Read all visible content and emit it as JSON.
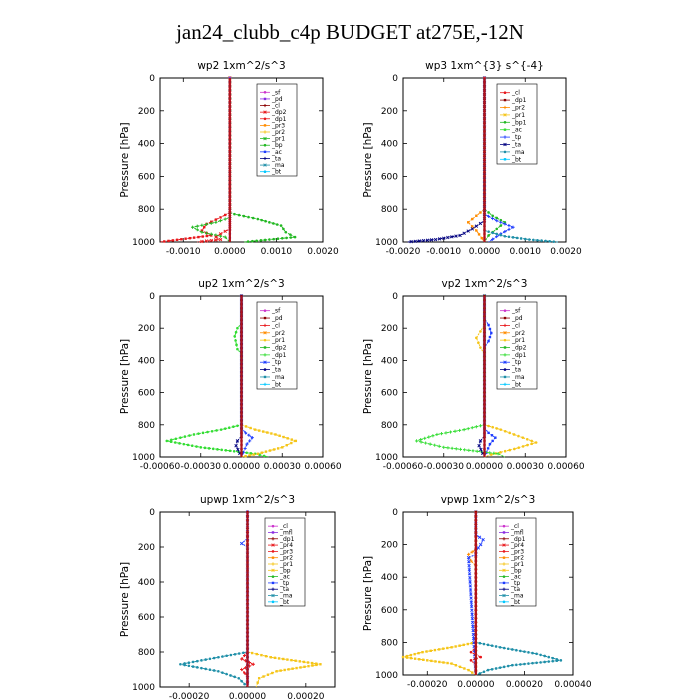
{
  "title": "jan24_clubb_c4p  BUDGET at275E,-12N",
  "colors": {
    "purple": "#8a2be2",
    "darkred": "#8b0000",
    "red": "#e8171b",
    "orange": "#ff8c00",
    "yellow": "#f5c518",
    "green": "#22b822",
    "lime": "#33dd33",
    "blue": "#1e3cff",
    "navy": "#000080",
    "teal": "#1f8fa8",
    "cyan": "#00c8ff",
    "magenta": "#cc33cc"
  },
  "chart_data": [
    {
      "type": "line",
      "title": "wp2   1xm^2/s^3",
      "ylabel": "Pressure [hPa]",
      "xlim": [
        -0.0015,
        0.002
      ],
      "ylim": [
        1000,
        0
      ],
      "xticks": [
        -0.001,
        0,
        0.001,
        0.002
      ],
      "xtick_labels": [
        "-0.0010",
        "0.0000",
        "0.0010",
        "0.0020"
      ],
      "yticks": [
        0,
        200,
        400,
        600,
        800,
        1000
      ],
      "ytick_labels": [
        "0",
        "200",
        "400",
        "600",
        "800",
        "1000"
      ],
      "legend": [
        "_sf",
        "_pd",
        "_cl",
        "_dp2",
        "_dp1",
        "_pr3",
        "_pr2",
        "_pr1",
        "_bp",
        "_ac",
        "_ta",
        "_ma",
        "_bt"
      ],
      "legend_colors": [
        "magenta",
        "purple",
        "darkred",
        "red",
        "red",
        "orange",
        "yellow",
        "green",
        "green",
        "blue",
        "navy",
        "teal",
        "cyan"
      ],
      "series": [
        {
          "name": "_bp",
          "color": "green",
          "x": [
            0,
            0,
            0.0001,
            0.0006,
            0.0011,
            0.0012,
            0.0014,
            0.0003
          ],
          "y": [
            0,
            820,
            830,
            860,
            900,
            940,
            970,
            1000
          ]
        },
        {
          "name": "_dp1",
          "color": "red",
          "x": [
            0,
            0,
            -0.0002,
            -0.0005,
            -0.0006,
            -0.0004,
            -0.0015
          ],
          "y": [
            0,
            820,
            850,
            890,
            930,
            960,
            1000
          ]
        },
        {
          "name": "_pr1",
          "color": "green",
          "x": [
            0,
            0,
            -0.0003,
            -0.0008,
            -0.0006,
            -0.0001,
            0
          ],
          "y": [
            0,
            850,
            880,
            910,
            940,
            970,
            1000
          ]
        },
        {
          "name": "_dp2",
          "color": "red",
          "x": [
            0,
            0,
            -0.0002,
            -0.0003,
            -0.0002,
            -0.0007
          ],
          "y": [
            0,
            920,
            950,
            970,
            985,
            1000
          ]
        },
        {
          "name": "_pd",
          "color": "purple",
          "x": [
            0,
            0,
            0,
            0
          ],
          "y": [
            0,
            500,
            900,
            1000
          ]
        }
      ]
    },
    {
      "type": "line",
      "title": "wp3   1xm^{3} s^{-4}",
      "ylabel": "Pressure [hPa]",
      "xlim": [
        -0.002,
        0.002
      ],
      "ylim": [
        1000,
        0
      ],
      "xticks": [
        -0.002,
        -0.001,
        0,
        0.001,
        0.002
      ],
      "xtick_labels": [
        "-0.0020",
        "-0.0010",
        "0.0000",
        "0.0010",
        "0.0020"
      ],
      "yticks": [
        0,
        200,
        400,
        600,
        800,
        1000
      ],
      "ytick_labels": [
        "0",
        "200",
        "400",
        "600",
        "800",
        "1000"
      ],
      "legend": [
        "_cl",
        "_dp1",
        "_pr2",
        "_pr1",
        "_bp1",
        "_ac",
        "_tp",
        "_ta",
        "_ma",
        "_bt"
      ],
      "legend_colors": [
        "red",
        "darkred",
        "orange",
        "yellow",
        "green",
        "lime",
        "blue",
        "navy",
        "teal",
        "cyan"
      ],
      "series": [
        {
          "name": "_bp1",
          "color": "green",
          "x": [
            0,
            0,
            0.0002,
            0.0005,
            0.0003,
            0.0001,
            0
          ],
          "y": [
            0,
            800,
            840,
            880,
            920,
            960,
            1000
          ]
        },
        {
          "name": "_pr2",
          "color": "orange",
          "x": [
            0,
            0,
            -0.0002,
            -0.0004,
            -0.0002,
            0
          ],
          "y": [
            0,
            800,
            840,
            880,
            930,
            1000
          ]
        },
        {
          "name": "_tp",
          "color": "blue",
          "x": [
            0,
            0,
            0.0003,
            0.0007,
            0.0004,
            0.0001
          ],
          "y": [
            0,
            830,
            870,
            910,
            950,
            1000
          ]
        },
        {
          "name": "_ta",
          "color": "navy",
          "x": [
            0,
            0,
            -0.0003,
            -0.0006,
            -0.0012,
            -0.0019
          ],
          "y": [
            0,
            870,
            920,
            960,
            985,
            1000
          ]
        },
        {
          "name": "_ma",
          "color": "teal",
          "x": [
            0,
            0,
            0.0005,
            0.0011,
            0.0018
          ],
          "y": [
            0,
            930,
            965,
            985,
            1000
          ]
        },
        {
          "name": "_cl",
          "color": "red",
          "x": [
            0,
            0,
            0,
            0
          ],
          "y": [
            0,
            500,
            900,
            1000
          ]
        }
      ]
    },
    {
      "type": "line",
      "title": "up2   1xm^2/s^3",
      "ylabel": "Pressure [hPa]",
      "xlim": [
        -0.0006,
        0.0006
      ],
      "ylim": [
        1000,
        0
      ],
      "xticks": [
        -0.0006,
        -0.0003,
        0,
        0.0003,
        0.0006
      ],
      "xtick_labels": [
        "-0.00060",
        "-0.00030",
        "0.00000",
        "0.00030",
        "0.00060"
      ],
      "yticks": [
        0,
        200,
        400,
        600,
        800,
        1000
      ],
      "ytick_labels": [
        "0",
        "200",
        "400",
        "600",
        "800",
        "1000"
      ],
      "legend": [
        "_sf",
        "_pd",
        "_cl",
        "_pr2",
        "_pr1",
        "_dp2",
        "_dp1",
        "_tp",
        "_ta",
        "_ma",
        "_bt"
      ],
      "legend_colors": [
        "magenta",
        "darkred",
        "red",
        "orange",
        "yellow",
        "green",
        "lime",
        "blue",
        "navy",
        "teal",
        "cyan"
      ],
      "series": [
        {
          "name": "_dp2",
          "color": "lime",
          "x": [
            0,
            0,
            -3e-05,
            -5e-05,
            -3e-05,
            0,
            0,
            -0.00015,
            -0.00035,
            -0.00055,
            -0.0003,
            0.0001,
            0.0002
          ],
          "y": [
            0,
            170,
            200,
            250,
            330,
            360,
            800,
            830,
            860,
            900,
            940,
            980,
            1000
          ]
        },
        {
          "name": "_pr1",
          "color": "yellow",
          "x": [
            0,
            0,
            0.0001,
            0.00025,
            0.0004,
            0.0003,
            0.00012,
            0
          ],
          "y": [
            0,
            800,
            830,
            860,
            900,
            940,
            980,
            1000
          ]
        },
        {
          "name": "_tp",
          "color": "blue",
          "x": [
            0,
            0,
            3e-05,
            8e-05,
            4e-05,
            0
          ],
          "y": [
            0,
            820,
            850,
            880,
            920,
            1000
          ]
        },
        {
          "name": "_ta",
          "color": "navy",
          "x": [
            0,
            0,
            -3e-05,
            -4e-05,
            0
          ],
          "y": [
            0,
            870,
            900,
            930,
            1000
          ]
        },
        {
          "name": "_pd",
          "color": "darkred",
          "x": [
            0,
            0,
            0,
            0
          ],
          "y": [
            0,
            500,
            900,
            1000
          ]
        }
      ]
    },
    {
      "type": "line",
      "title": "vp2   1xm^2/s^3",
      "ylabel": "Pressure [hPa]",
      "xlim": [
        -0.0006,
        0.0006
      ],
      "ylim": [
        1000,
        0
      ],
      "xticks": [
        -0.0006,
        -0.0003,
        0,
        0.0003,
        0.0006
      ],
      "xtick_labels": [
        "-0.00060",
        "-0.00030",
        "0.00000",
        "0.00030",
        "0.00060"
      ],
      "yticks": [
        0,
        200,
        400,
        600,
        800,
        1000
      ],
      "ytick_labels": [
        "0",
        "200",
        "400",
        "600",
        "800",
        "1000"
      ],
      "legend": [
        "_sf",
        "_pd",
        "_cl",
        "_pr2",
        "_pr1",
        "_dp2",
        "_dp1",
        "_tp",
        "_ta",
        "_ma",
        "_bt"
      ],
      "legend_colors": [
        "magenta",
        "darkred",
        "red",
        "orange",
        "yellow",
        "green",
        "lime",
        "blue",
        "navy",
        "teal",
        "cyan"
      ],
      "series": [
        {
          "name": "_pr1",
          "color": "yellow",
          "x": [
            0,
            0,
            -3e-05,
            -6e-05,
            -3e-05,
            0,
            0,
            0.00012,
            0.00025,
            0.00038,
            0.00022,
            5e-05,
            0
          ],
          "y": [
            0,
            180,
            220,
            260,
            320,
            360,
            800,
            830,
            870,
            910,
            950,
            985,
            1000
          ]
        },
        {
          "name": "_tp",
          "color": "blue",
          "x": [
            0,
            0,
            3e-05,
            5e-05,
            3e-05,
            0,
            0,
            3e-05,
            8e-05,
            4e-05,
            0
          ],
          "y": [
            0,
            140,
            180,
            230,
            280,
            320,
            820,
            850,
            880,
            920,
            1000
          ]
        },
        {
          "name": "_dp2",
          "color": "lime",
          "x": [
            0,
            0,
            -0.00015,
            -0.00035,
            -0.0005,
            -0.0003,
            0.0001,
            0.00015
          ],
          "y": [
            0,
            800,
            830,
            860,
            900,
            940,
            980,
            1000
          ]
        },
        {
          "name": "_ta",
          "color": "navy",
          "x": [
            0,
            0,
            -3e-05,
            -4e-05,
            0
          ],
          "y": [
            0,
            870,
            900,
            930,
            1000
          ]
        },
        {
          "name": "_pd",
          "color": "darkred",
          "x": [
            0,
            0,
            0,
            0
          ],
          "y": [
            0,
            500,
            900,
            1000
          ]
        }
      ]
    },
    {
      "type": "line",
      "title": "upwp   1xm^2/s^3",
      "ylabel": "Pressure [hPa]",
      "xlim": [
        -0.0003,
        0.0003
      ],
      "ylim": [
        1000,
        0
      ],
      "xticks": [
        -0.0002,
        0,
        0.0002
      ],
      "xtick_labels": [
        "-0.00020",
        "0.00000",
        "0.00020"
      ],
      "yticks": [
        0,
        200,
        400,
        600,
        800,
        1000
      ],
      "ytick_labels": [
        "0",
        "200",
        "400",
        "600",
        "800",
        "1000"
      ],
      "legend": [
        "_cl",
        "_mfl",
        "_dp1",
        "_pr4",
        "_pr3",
        "_pr2",
        "_pr1",
        "_bp",
        "_ac",
        "_tp",
        "_ta",
        "_ma",
        "_bt"
      ],
      "legend_colors": [
        "magenta",
        "purple",
        "darkred",
        "red",
        "red",
        "orange",
        "yellow",
        "yellow",
        "green",
        "blue",
        "navy",
        "teal",
        "cyan"
      ],
      "series": [
        {
          "name": "_ma",
          "color": "teal",
          "x": [
            0,
            0,
            -0.0001,
            -0.00023,
            -0.0001,
            -3e-05,
            0
          ],
          "y": [
            0,
            800,
            830,
            870,
            910,
            950,
            1000
          ]
        },
        {
          "name": "_pr1",
          "color": "yellow",
          "x": [
            0,
            0,
            8e-05,
            0.00025,
            0.0001,
            4e-05,
            3e-05
          ],
          "y": [
            0,
            800,
            830,
            870,
            910,
            950,
            1000
          ]
        },
        {
          "name": "_pr3",
          "color": "red",
          "x": [
            0,
            0,
            -2e-05,
            2e-05,
            -2e-05,
            0,
            0
          ],
          "y": [
            0,
            800,
            840,
            870,
            900,
            940,
            1000
          ]
        },
        {
          "name": "_tp",
          "color": "blue",
          "x": [
            0,
            0,
            -2e-05,
            0,
            0
          ],
          "y": [
            0,
            150,
            180,
            200,
            1000
          ]
        },
        {
          "name": "_dp1",
          "color": "darkred",
          "x": [
            0,
            0,
            0,
            0
          ],
          "y": [
            0,
            500,
            900,
            1000
          ]
        }
      ]
    },
    {
      "type": "line",
      "title": "vpwp   1xm^2/s^3",
      "ylabel": "Pressure [hPa]",
      "xlim": [
        -0.0003,
        0.0004
      ],
      "ylim": [
        1000,
        0
      ],
      "xticks": [
        -0.0002,
        0,
        0.0002,
        0.0004
      ],
      "xtick_labels": [
        "-0.00020",
        "0.00000",
        "0.00020",
        "0.00040"
      ],
      "yticks": [
        0,
        200,
        400,
        600,
        800,
        1000
      ],
      "ytick_labels": [
        "0",
        "200",
        "400",
        "600",
        "800",
        "1000"
      ],
      "legend": [
        "_cl",
        "_mfl",
        "_dp1",
        "_pr4",
        "_pr3",
        "_pr2",
        "_pr1",
        "_bp",
        "_ac",
        "_tp",
        "_ta",
        "_ma",
        "_bt"
      ],
      "legend_colors": [
        "magenta",
        "purple",
        "darkred",
        "red",
        "red",
        "orange",
        "yellow",
        "yellow",
        "green",
        "blue",
        "navy",
        "teal",
        "cyan"
      ],
      "series": [
        {
          "name": "_ma",
          "color": "teal",
          "x": [
            0,
            0,
            0.0001,
            0.00025,
            0.00035,
            0.00015,
            5e-05,
            0
          ],
          "y": [
            0,
            800,
            830,
            870,
            910,
            940,
            970,
            1000
          ]
        },
        {
          "name": "_pr1",
          "color": "yellow",
          "x": [
            0,
            0,
            -0.0001,
            -0.00022,
            -0.0003,
            -0.0001,
            -3e-05,
            0
          ],
          "y": [
            0,
            800,
            830,
            860,
            890,
            930,
            970,
            1000
          ]
        },
        {
          "name": "_pr2",
          "color": "orange",
          "x": [
            0,
            0,
            -3e-05,
            -2e-05,
            0,
            0
          ],
          "y": [
            0,
            230,
            260,
            300,
            330,
            1000
          ]
        },
        {
          "name": "_tp",
          "color": "blue",
          "x": [
            0,
            0,
            3e-05,
            2e-05,
            0,
            0,
            -3e-05,
            0
          ],
          "y": [
            0,
            140,
            170,
            200,
            240,
            260,
            280,
            1000
          ]
        },
        {
          "name": "_pr3",
          "color": "red",
          "x": [
            0,
            0,
            -2e-05,
            2e-05,
            -2e-05,
            0,
            0
          ],
          "y": [
            0,
            830,
            860,
            890,
            910,
            940,
            1000
          ]
        },
        {
          "name": "_dp1",
          "color": "darkred",
          "x": [
            0,
            0,
            0,
            0
          ],
          "y": [
            0,
            500,
            900,
            1000
          ]
        }
      ]
    }
  ]
}
